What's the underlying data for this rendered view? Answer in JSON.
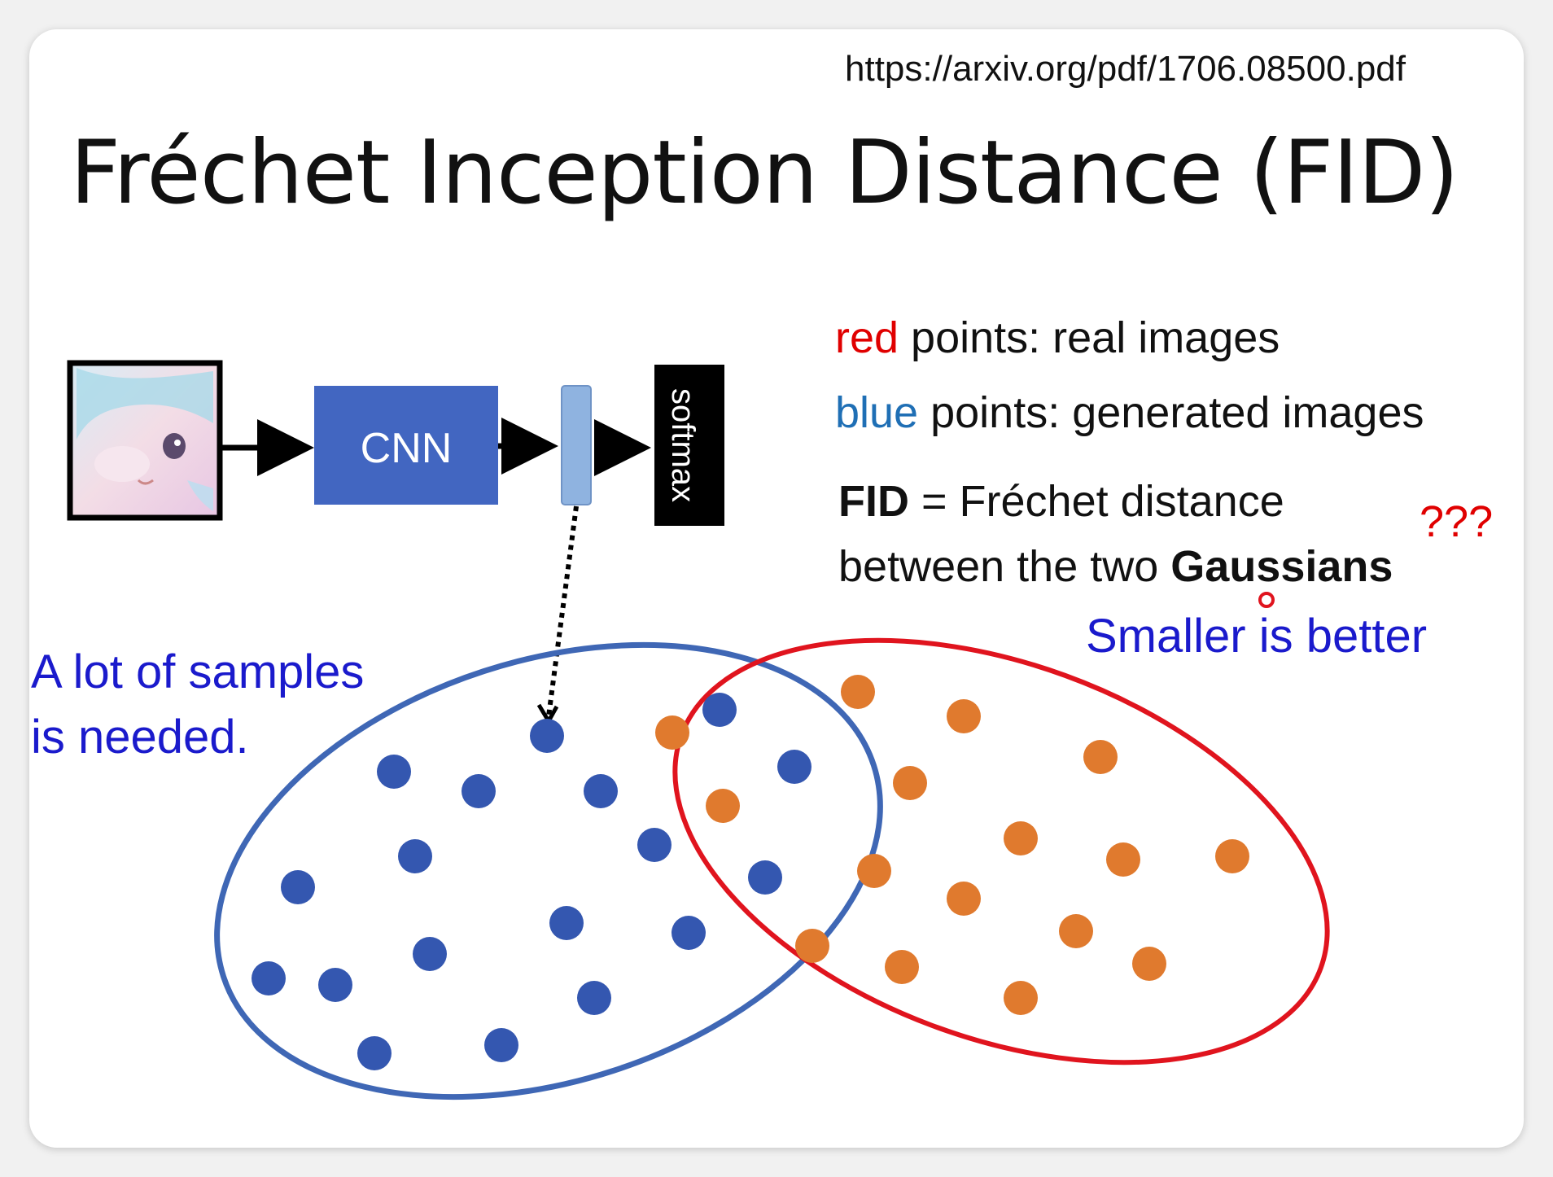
{
  "source_url": "https://arxiv.org/pdf/1706.08500.pdf",
  "title": "Fréchet Inception Distance (FID)",
  "pipeline": {
    "cnn_label": "CNN",
    "softmax_label": "softmax"
  },
  "legend": {
    "red_word": "red",
    "red_rest": " points: real images",
    "blue_word": "blue",
    "blue_rest": " points: generated images"
  },
  "fid_definition": {
    "bold_term": "FID",
    "line1_rest": " = Fréchet distance",
    "line2_start": "between the two ",
    "line2_bold": "Gaussians"
  },
  "question_marks": "???",
  "smaller_is_better": "Smaller is better",
  "samples_note": {
    "line1": "A lot of samples",
    "line2": "is needed."
  },
  "colors": {
    "blue_points": "#3457b0",
    "orange_points": "#e07a2e",
    "blue_ellipse": "#3f67b5",
    "red_ellipse": "#e0141e",
    "cnn_box": "#4266c1",
    "feature_bar": "#8fb3e0"
  },
  "icons": [
    "anime-face-thumbnail",
    "arrow-right-icon",
    "dotted-arrow-down-icon",
    "cursor-dot-icon"
  ]
}
